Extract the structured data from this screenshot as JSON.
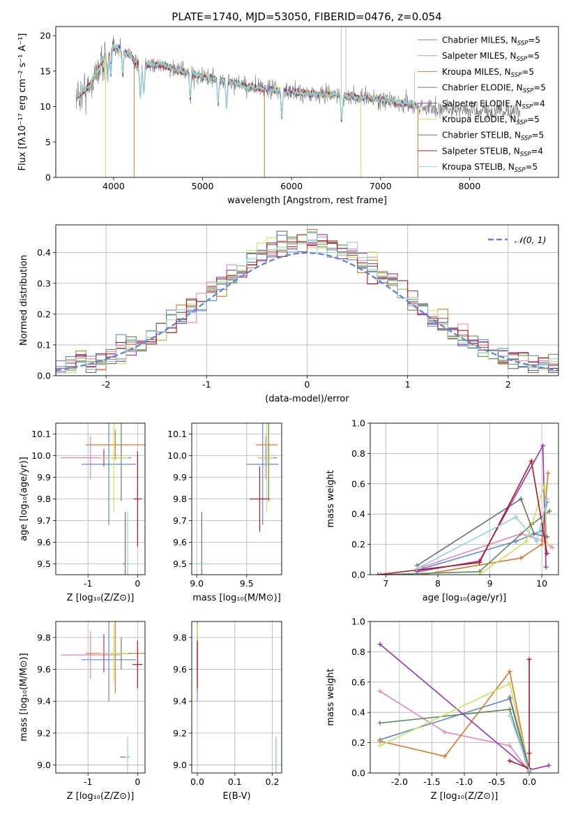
{
  "figure_title": "PLATE=1740, MJD=53050, FIBERID=0476, z=0.054",
  "colors": {
    "Chabrier MILES": "#5b8bd6",
    "Salpeter MILES": "#e585b6",
    "Kroupa MILES": "#d9782b",
    "Chabrier ELODIE": "#5f8a5a",
    "Salpeter ELODIE": "#9b30b5",
    "Kroupa ELODIE": "#c8e25a",
    "Chabrier STELIB": "#6e6e6e",
    "Salpeter STELIB": "#b0171f",
    "Kroupa STELIB": "#8fd3dc",
    "normal_curve": "#5b8bd6",
    "grid": "#b0b0b0"
  },
  "chart_data": [
    {
      "id": "spectrum",
      "type": "line",
      "title": "PLATE=1740, MJD=53050, FIBERID=0476, z=0.054",
      "xlabel": "wavelength [Angstrom, rest frame]",
      "ylabel": "Flux [fλ10⁻¹⁷ erg cm⁻² s⁻¹ A⁻¹]",
      "xlim": [
        3350,
        9000
      ],
      "ylim": [
        0,
        21.3
      ],
      "xticks": [
        4000,
        5000,
        6000,
        7000,
        8000
      ],
      "yticks": [
        0,
        5,
        10,
        15,
        20
      ],
      "grid": false,
      "legend_position": "top-right",
      "legend": [
        {
          "name": "Chabrier MILES",
          "nssp": "5"
        },
        {
          "name": "Salpeter MILES",
          "nssp": "5"
        },
        {
          "name": "Kroupa MILES",
          "nssp": "5"
        },
        {
          "name": "Chabrier ELODIE",
          "nssp": "5"
        },
        {
          "name": "Salpeter ELODIE",
          "nssp": "4"
        },
        {
          "name": "Kroupa ELODIE",
          "nssp": "5"
        },
        {
          "name": "Chabrier STELIB",
          "nssp": "5"
        },
        {
          "name": "Salpeter STELIB",
          "nssp": "4"
        },
        {
          "name": "Kroupa STELIB",
          "nssp": "5"
        }
      ],
      "continuum": {
        "x": [
          3600,
          3700,
          3800,
          3900,
          4000,
          4100,
          4200,
          4300,
          4400,
          4500,
          4700,
          5000,
          5200,
          5500,
          6000,
          6500,
          7000,
          7500,
          8000,
          8500
        ],
        "y": [
          11.5,
          12.5,
          14.5,
          17.0,
          18.5,
          18.0,
          17.2,
          15.0,
          16.0,
          16.0,
          15.2,
          14.2,
          13.8,
          12.8,
          12.0,
          11.6,
          11.0,
          9.9,
          9.4,
          9.3
        ]
      },
      "data_range": [
        3580,
        8570
      ],
      "model_range": [
        3600,
        7420
      ]
    },
    {
      "id": "residuals",
      "type": "histogram",
      "xlabel": "(data-model)/error",
      "ylabel": "Normed distribution",
      "xlim": [
        -2.5,
        2.5
      ],
      "ylim": [
        0,
        0.49
      ],
      "xticks": [
        -2,
        -1,
        0,
        1,
        2
      ],
      "yticks": [
        0.0,
        0.1,
        0.2,
        0.3,
        0.4
      ],
      "grid": true,
      "bin_width": 0.1,
      "curve_label": "𝒩(0, 1)",
      "legend_position": "top-right"
    },
    {
      "id": "age_vs_Z",
      "type": "errorbar",
      "xlabel": "Z [log₁₀(Z/Z⊙)]",
      "ylabel": "age  [log₁₀(age/yr)]",
      "xlim": [
        -1.65,
        0.15
      ],
      "ylim": [
        9.45,
        10.15
      ],
      "xticks": [
        -1,
        0
      ],
      "yticks": [
        9.5,
        9.6,
        9.7,
        9.8,
        9.9,
        10.0,
        10.1
      ],
      "grid": true,
      "points": [
        {
          "model": "Chabrier MILES",
          "x": -0.58,
          "y": 9.96,
          "xerr": 0.55,
          "yerr": 0.28
        },
        {
          "model": "Salpeter MILES",
          "x": -0.95,
          "y": 9.99,
          "xerr": 0.6,
          "yerr": 0.1
        },
        {
          "model": "Kroupa MILES",
          "x": -0.45,
          "y": 10.05,
          "xerr": 0.6,
          "yerr": 0.07
        },
        {
          "model": "Chabrier ELODIE",
          "x": -0.33,
          "y": 9.99,
          "xerr": 0.2,
          "yerr": 0.2
        },
        {
          "model": "Salpeter ELODIE",
          "x": -0.68,
          "y": 9.99,
          "xerr": 0.1,
          "yerr": 0.04
        },
        {
          "model": "Kroupa ELODIE",
          "x": -0.48,
          "y": 9.99,
          "xerr": 0.3,
          "yerr": 0.25
        },
        {
          "model": "Chabrier STELIB",
          "x": -0.25,
          "y": 9.5,
          "xerr": 0.05,
          "yerr": 0.24
        },
        {
          "model": "Salpeter STELIB",
          "x": 0.0,
          "y": 9.8,
          "xerr": 0.08,
          "yerr": 0.22
        },
        {
          "model": "Kroupa STELIB",
          "x": -0.2,
          "y": 9.5,
          "xerr": 0.06,
          "yerr": 0.24
        }
      ]
    },
    {
      "id": "age_vs_mass",
      "type": "errorbar",
      "xlabel": "mass [log₁₀(M/M⊙)]",
      "ylabel": "",
      "xlim": [
        8.95,
        9.85
      ],
      "ylim": [
        9.45,
        10.15
      ],
      "xticks": [
        9.0,
        9.5
      ],
      "yticks": [
        9.5,
        9.6,
        9.7,
        9.8,
        9.9,
        10.0,
        10.1
      ],
      "grid": true,
      "points": [
        {
          "model": "Chabrier MILES",
          "x": 9.66,
          "y": 9.96,
          "xerr": 0.16,
          "yerr": 0.28
        },
        {
          "model": "Salpeter MILES",
          "x": 9.69,
          "y": 9.99,
          "xerr": 0.08,
          "yerr": 0.1
        },
        {
          "model": "Kroupa MILES",
          "x": 9.7,
          "y": 10.05,
          "xerr": 0.11,
          "yerr": 0.07
        },
        {
          "model": "Chabrier ELODIE",
          "x": 9.72,
          "y": 9.99,
          "xerr": 0.08,
          "yerr": 0.2
        },
        {
          "model": "Salpeter ELODIE",
          "x": 9.7,
          "y": 9.99,
          "xerr": 0.07,
          "yerr": 0.04
        },
        {
          "model": "Kroupa ELODIE",
          "x": 9.7,
          "y": 9.99,
          "xerr": 0.07,
          "yerr": 0.25
        },
        {
          "model": "Chabrier STELIB",
          "x": 9.05,
          "y": 9.5,
          "xerr": 0.03,
          "yerr": 0.24
        },
        {
          "model": "Salpeter STELIB",
          "x": 9.63,
          "y": 9.8,
          "xerr": 0.1,
          "yerr": 0.15
        },
        {
          "model": "Kroupa STELIB",
          "x": 9.05,
          "y": 9.5,
          "xerr": 0.09,
          "yerr": 0.0
        }
      ]
    },
    {
      "id": "weight_vs_age",
      "type": "line",
      "xlabel": "age  [log₁₀(age/yr)]",
      "ylabel": "mass weight",
      "xlim": [
        6.7,
        10.32
      ],
      "ylim": [
        0,
        1
      ],
      "xticks": [
        7,
        8,
        9,
        10
      ],
      "yticks": [
        0.0,
        0.2,
        0.4,
        0.6,
        0.8,
        1.0
      ],
      "grid": true,
      "series": [
        {
          "model": "Chabrier MILES",
          "x": [
            7.6,
            9.5,
            10.0,
            10.1
          ],
          "y": [
            0.03,
            0.22,
            0.29,
            0.48
          ]
        },
        {
          "model": "Salpeter MILES",
          "x": [
            7.7,
            9.6,
            10.05,
            10.2
          ],
          "y": [
            0.05,
            0.27,
            0.22,
            0.18
          ]
        },
        {
          "model": "Kroupa MILES",
          "x": [
            7.7,
            9.6,
            10.0,
            10.12
          ],
          "y": [
            0.0,
            0.11,
            0.2,
            0.67
          ]
        },
        {
          "model": "Chabrier ELODIE",
          "x": [
            6.9,
            8.8,
            9.8,
            10.15
          ],
          "y": [
            0.0,
            0.02,
            0.33,
            0.42
          ]
        },
        {
          "model": "Salpeter ELODIE",
          "x": [
            7.6,
            8.8,
            10.02,
            10.08
          ],
          "y": [
            0.02,
            0.09,
            0.85,
            0.05
          ]
        },
        {
          "model": "Kroupa ELODIE",
          "x": [
            8.8,
            9.7,
            10.05,
            10.1
          ],
          "y": [
            0.0,
            0.22,
            0.59,
            0.2
          ]
        },
        {
          "model": "Chabrier STELIB",
          "x": [
            7.6,
            9.6,
            9.85,
            10.1
          ],
          "y": [
            0.06,
            0.5,
            0.27,
            0.25
          ]
        },
        {
          "model": "Salpeter STELIB",
          "x": [
            6.85,
            8.8,
            9.8,
            10.1
          ],
          "y": [
            0.0,
            0.08,
            0.75,
            0.14
          ]
        },
        {
          "model": "Kroupa STELIB",
          "x": [
            7.6,
            9.5,
            9.9,
            10.1
          ],
          "y": [
            0.04,
            0.38,
            0.22,
            0.5
          ]
        }
      ]
    },
    {
      "id": "mass_vs_Z",
      "type": "errorbar",
      "xlabel": "Z [log₁₀(Z/Z⊙)]",
      "ylabel": "mass [log₁₀(M/M⊙)]",
      "xlim": [
        -1.65,
        0.15
      ],
      "ylim": [
        8.95,
        9.9
      ],
      "xticks": [
        -1,
        0
      ],
      "yticks": [
        9.0,
        9.2,
        9.4,
        9.6,
        9.8
      ],
      "grid": true,
      "points": [
        {
          "model": "Chabrier MILES",
          "x": -0.58,
          "y": 9.66,
          "xerr": 0.55,
          "yerr": 0.26
        },
        {
          "model": "Salpeter MILES",
          "x": -0.95,
          "y": 9.69,
          "xerr": 0.6,
          "yerr": 0.15
        },
        {
          "model": "Kroupa MILES",
          "x": -0.45,
          "y": 9.7,
          "xerr": 0.6,
          "yerr": 0.25
        },
        {
          "model": "Chabrier ELODIE",
          "x": -0.33,
          "y": 9.7,
          "xerr": 0.2,
          "yerr": 0.1
        },
        {
          "model": "Salpeter ELODIE",
          "x": -0.68,
          "y": 9.7,
          "xerr": 0.1,
          "yerr": 0.12
        },
        {
          "model": "Kroupa ELODIE",
          "x": -0.48,
          "y": 9.7,
          "xerr": 0.3,
          "yerr": 0.18
        },
        {
          "model": "Chabrier STELIB",
          "x": -0.25,
          "y": 9.05,
          "xerr": 0.1,
          "yerr": 0.0
        },
        {
          "model": "Salpeter STELIB",
          "x": 0.0,
          "y": 9.63,
          "xerr": 0.1,
          "yerr": 0.15
        },
        {
          "model": "Kroupa STELIB",
          "x": -0.2,
          "y": 9.05,
          "xerr": 0.05,
          "yerr": 0.13
        }
      ]
    },
    {
      "id": "mass_vs_ebv",
      "type": "errorbar",
      "xlabel": "E(B-V)",
      "ylabel": "",
      "xlim": [
        -0.015,
        0.225
      ],
      "ylim": [
        8.95,
        9.9
      ],
      "xticks": [
        0.0,
        0.1,
        0.2
      ],
      "yticks": [
        9.0,
        9.2,
        9.4,
        9.6,
        9.8
      ],
      "grid": true,
      "points": [
        {
          "model": "Chabrier MILES",
          "x": 0.0,
          "y": 9.66,
          "xerr": 0.0,
          "yerr": 0.26
        },
        {
          "model": "Salpeter MILES",
          "x": 0.0,
          "y": 9.69,
          "xerr": 0.0,
          "yerr": 0.15
        },
        {
          "model": "Kroupa MILES",
          "x": 0.0,
          "y": 9.7,
          "xerr": 0.0,
          "yerr": 0.25
        },
        {
          "model": "Chabrier ELODIE",
          "x": 0.0,
          "y": 9.7,
          "xerr": 0.0,
          "yerr": 0.1
        },
        {
          "model": "Salpeter ELODIE",
          "x": 0.0,
          "y": 9.7,
          "xerr": 0.0,
          "yerr": 0.12
        },
        {
          "model": "Kroupa ELODIE",
          "x": 0.0,
          "y": 9.7,
          "xerr": 0.0,
          "yerr": 0.18
        },
        {
          "model": "Chabrier STELIB",
          "x": 0.21,
          "y": 9.05,
          "xerr": 0.0,
          "yerr": 0.12
        },
        {
          "model": "Salpeter STELIB",
          "x": 0.0,
          "y": 9.63,
          "xerr": 0.0,
          "yerr": 0.15
        },
        {
          "model": "Kroupa STELIB",
          "x": 0.21,
          "y": 9.05,
          "xerr": 0.0,
          "yerr": 0.13
        }
      ]
    },
    {
      "id": "weight_vs_Z",
      "type": "line",
      "xlabel": "Z [log₁₀(Z/Z⊙)]",
      "ylabel": "mass weight",
      "xlim": [
        -2.45,
        0.45
      ],
      "ylim": [
        0,
        1
      ],
      "xticks": [
        -2.0,
        -1.5,
        -1.0,
        -0.5,
        0.0
      ],
      "yticks": [
        0.0,
        0.2,
        0.4,
        0.6,
        0.8,
        1.0
      ],
      "grid": true,
      "series": [
        {
          "model": "Chabrier MILES",
          "x": [
            -2.3,
            -0.3,
            0.0
          ],
          "y": [
            0.22,
            0.49,
            0.01
          ]
        },
        {
          "model": "Salpeter MILES",
          "x": [
            -2.3,
            -1.3,
            -0.3,
            0.0
          ],
          "y": [
            0.54,
            0.27,
            0.18,
            0.01
          ]
        },
        {
          "model": "Kroupa MILES",
          "x": [
            -2.3,
            -1.3,
            -0.3,
            0.0
          ],
          "y": [
            0.21,
            0.11,
            0.67,
            0.01
          ]
        },
        {
          "model": "Chabrier ELODIE",
          "x": [
            -2.3,
            -0.3,
            0.0
          ],
          "y": [
            0.33,
            0.42,
            0.0
          ]
        },
        {
          "model": "Salpeter ELODIE",
          "x": [
            -2.3,
            0.0,
            0.3
          ],
          "y": [
            0.85,
            0.02,
            0.05
          ]
        },
        {
          "model": "Kroupa ELODIE",
          "x": [
            -2.3,
            -0.3,
            0.0
          ],
          "y": [
            0.18,
            0.59,
            0.02
          ]
        },
        {
          "model": "Chabrier STELIB",
          "x": [
            -0.3,
            0.0,
            0.0
          ],
          "y": [
            0.5,
            0.03,
            0.0
          ]
        },
        {
          "model": "Salpeter STELIB",
          "x": [
            -0.3,
            0.0,
            0.0,
            0.0
          ],
          "y": [
            0.08,
            0.03,
            0.75,
            0.13
          ]
        },
        {
          "model": "Kroupa STELIB",
          "x": [
            -0.3,
            0.0,
            0.0
          ],
          "y": [
            0.38,
            0.02,
            0.0
          ]
        }
      ]
    }
  ]
}
